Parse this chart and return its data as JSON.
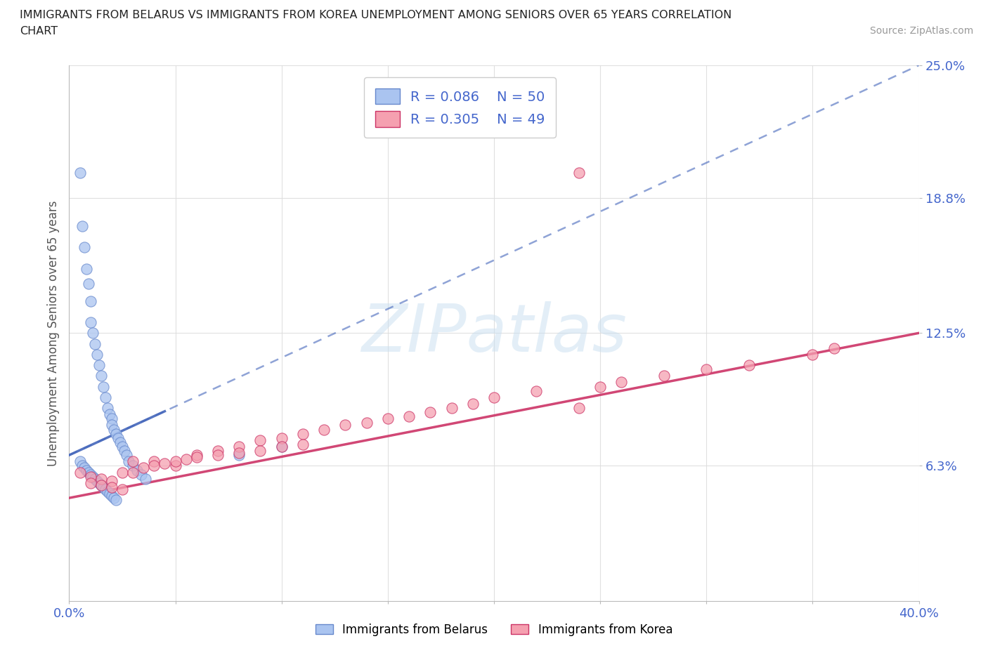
{
  "title_line1": "IMMIGRANTS FROM BELARUS VS IMMIGRANTS FROM KOREA UNEMPLOYMENT AMONG SENIORS OVER 65 YEARS CORRELATION",
  "title_line2": "CHART",
  "source": "Source: ZipAtlas.com",
  "ylabel": "Unemployment Among Seniors over 65 years",
  "xlim": [
    0.0,
    0.4
  ],
  "ylim": [
    0.0,
    0.25
  ],
  "xtick_positions": [
    0.0,
    0.05,
    0.1,
    0.15,
    0.2,
    0.25,
    0.3,
    0.35,
    0.4
  ],
  "xticklabels": [
    "0.0%",
    "",
    "",
    "",
    "",
    "",
    "",
    "",
    "40.0%"
  ],
  "ytick_positions": [
    0.063,
    0.125,
    0.188,
    0.25
  ],
  "ytick_labels": [
    "6.3%",
    "12.5%",
    "18.8%",
    "25.0%"
  ],
  "belarus_color": "#aac4f0",
  "belarus_edge": "#6688cc",
  "korea_color": "#f5a0b0",
  "korea_edge": "#cc3366",
  "trend_belarus_color": "#4466bb",
  "trend_korea_color": "#cc3366",
  "belarus_R": 0.086,
  "belarus_N": 50,
  "korea_R": 0.305,
  "korea_N": 49,
  "R_color": "#4466cc",
  "N_color": "#4466cc",
  "watermark_color": "#c8dff0",
  "tick_color": "#4466cc",
  "legend_label_belarus": "Immigrants from Belarus",
  "legend_label_korea": "Immigrants from Korea",
  "bel_x": [
    0.005,
    0.006,
    0.007,
    0.008,
    0.009,
    0.01,
    0.01,
    0.011,
    0.012,
    0.013,
    0.014,
    0.015,
    0.016,
    0.017,
    0.018,
    0.019,
    0.02,
    0.02,
    0.021,
    0.022,
    0.023,
    0.024,
    0.025,
    0.026,
    0.027,
    0.028,
    0.03,
    0.032,
    0.034,
    0.036,
    0.005,
    0.006,
    0.007,
    0.008,
    0.009,
    0.01,
    0.011,
    0.012,
    0.013,
    0.014,
    0.015,
    0.016,
    0.017,
    0.018,
    0.019,
    0.02,
    0.021,
    0.022,
    0.08,
    0.1
  ],
  "bel_y": [
    0.2,
    0.175,
    0.165,
    0.155,
    0.148,
    0.14,
    0.13,
    0.125,
    0.12,
    0.115,
    0.11,
    0.105,
    0.1,
    0.095,
    0.09,
    0.087,
    0.085,
    0.082,
    0.08,
    0.078,
    0.076,
    0.074,
    0.072,
    0.07,
    0.068,
    0.065,
    0.063,
    0.061,
    0.059,
    0.057,
    0.065,
    0.063,
    0.062,
    0.061,
    0.06,
    0.059,
    0.058,
    0.057,
    0.056,
    0.055,
    0.054,
    0.053,
    0.052,
    0.051,
    0.05,
    0.049,
    0.048,
    0.047,
    0.068,
    0.072
  ],
  "kor_x": [
    0.005,
    0.01,
    0.015,
    0.02,
    0.025,
    0.03,
    0.04,
    0.05,
    0.06,
    0.07,
    0.08,
    0.09,
    0.1,
    0.11,
    0.12,
    0.13,
    0.14,
    0.15,
    0.16,
    0.17,
    0.18,
    0.19,
    0.2,
    0.22,
    0.24,
    0.25,
    0.26,
    0.28,
    0.3,
    0.32,
    0.01,
    0.015,
    0.02,
    0.025,
    0.03,
    0.035,
    0.04,
    0.045,
    0.05,
    0.055,
    0.06,
    0.07,
    0.08,
    0.09,
    0.1,
    0.11,
    0.35,
    0.36,
    0.24
  ],
  "kor_y": [
    0.06,
    0.058,
    0.057,
    0.056,
    0.06,
    0.065,
    0.065,
    0.063,
    0.068,
    0.07,
    0.072,
    0.075,
    0.076,
    0.078,
    0.08,
    0.082,
    0.083,
    0.085,
    0.086,
    0.088,
    0.09,
    0.092,
    0.095,
    0.098,
    0.2,
    0.1,
    0.102,
    0.105,
    0.108,
    0.11,
    0.055,
    0.054,
    0.053,
    0.052,
    0.06,
    0.062,
    0.063,
    0.064,
    0.065,
    0.066,
    0.067,
    0.068,
    0.069,
    0.07,
    0.072,
    0.073,
    0.115,
    0.118,
    0.09
  ]
}
